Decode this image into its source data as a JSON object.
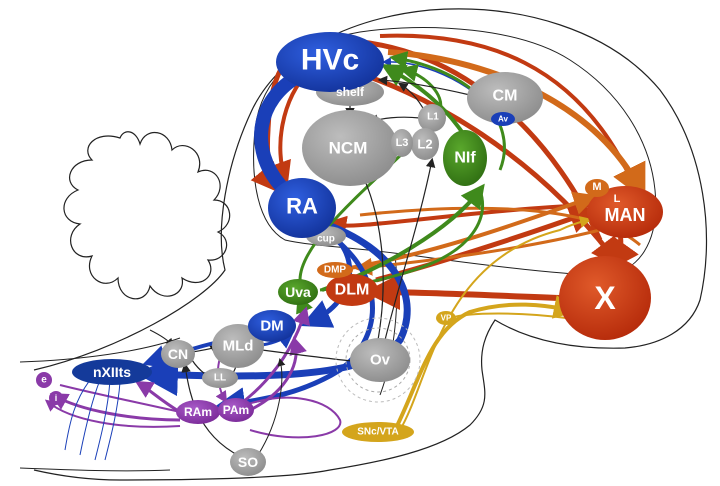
{
  "labels": {
    "hvc": "HVc",
    "shelf": "shelf",
    "cm": "CM",
    "av": "Av",
    "ncm": "NCM",
    "l1": "L1",
    "l2": "L2",
    "l3": "L3",
    "nif": "NIf",
    "ra": "RA",
    "cup": "cup",
    "m": "M",
    "l": "L",
    "man": "MAN",
    "x": "X",
    "dmp": "DMP",
    "dlm": "DLM",
    "uva": "Uva",
    "dm": "DM",
    "cn": "CN",
    "mld": "MLd",
    "ll": "LL",
    "nxiits": "nXIIts",
    "vp": "VP",
    "ov": "Ov",
    "ram": "RAm",
    "pam": "PAm",
    "so": "SO",
    "snc_vta": "SNc/VTA",
    "e": "e",
    "i": "i"
  },
  "colors": {
    "gray_nucleus": "#999999",
    "blue_motor": "#1a3fb8",
    "dark_blue": "#143a9a",
    "red_afp": "#c23a12",
    "orange": "#d26a1a",
    "green_nif": "#3f8a1c",
    "purple_resp": "#8a3aa8",
    "gold_dopamine": "#d4a51c",
    "outline": "#222222"
  }
}
